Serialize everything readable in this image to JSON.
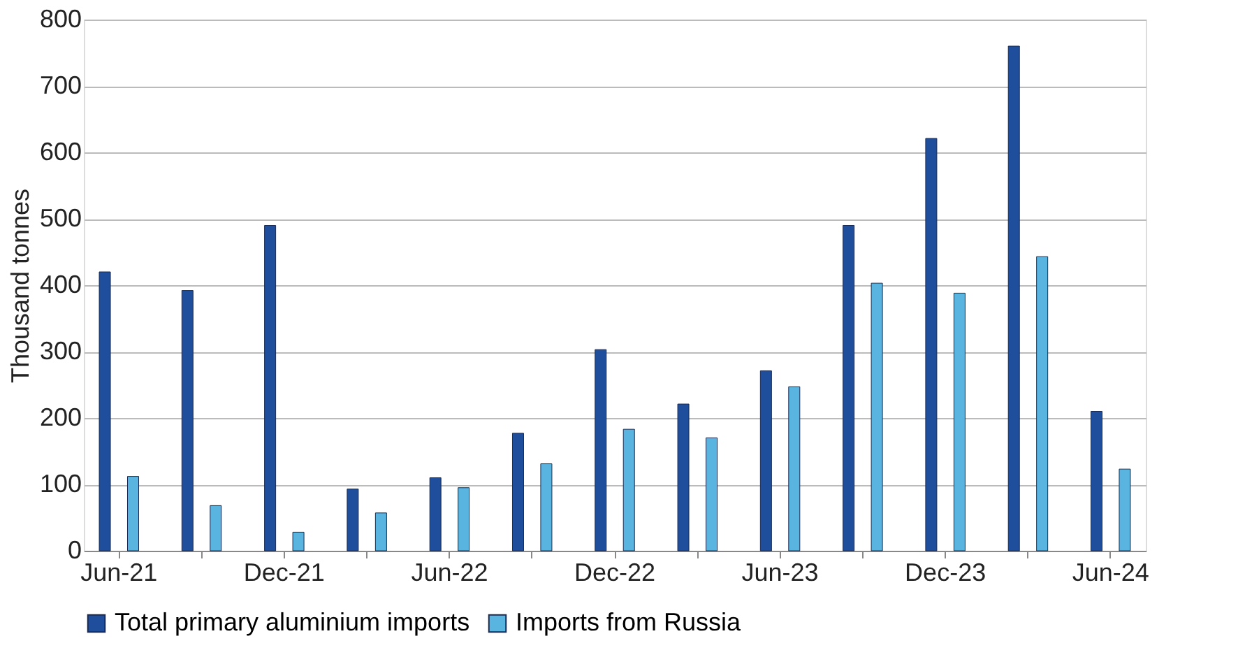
{
  "chart_data": {
    "type": "bar",
    "ylabel": "Thousand tonnes",
    "categories": [
      "Jun-21",
      null,
      "Dec-21",
      null,
      "Jun-22",
      null,
      "Dec-22",
      null,
      "Jun-23",
      null,
      "Dec-23",
      null,
      "Jun-24"
    ],
    "series": [
      {
        "name": "Total primary aluminium imports",
        "color": "#1f4e9c",
        "values": [
          420,
          392,
          490,
          93,
          110,
          177,
          303,
          221,
          271,
          490,
          621,
          760,
          210
        ]
      },
      {
        "name": "Imports from Russia",
        "color": "#5ab4e0",
        "values": [
          112,
          68,
          28,
          57,
          95,
          131,
          183,
          170,
          247,
          403,
          388,
          443,
          123
        ]
      }
    ],
    "ylim": [
      0,
      800
    ],
    "yticks": [
      0,
      100,
      200,
      300,
      400,
      500,
      600,
      700,
      800
    ],
    "grid": "y",
    "legend": "bottom"
  }
}
